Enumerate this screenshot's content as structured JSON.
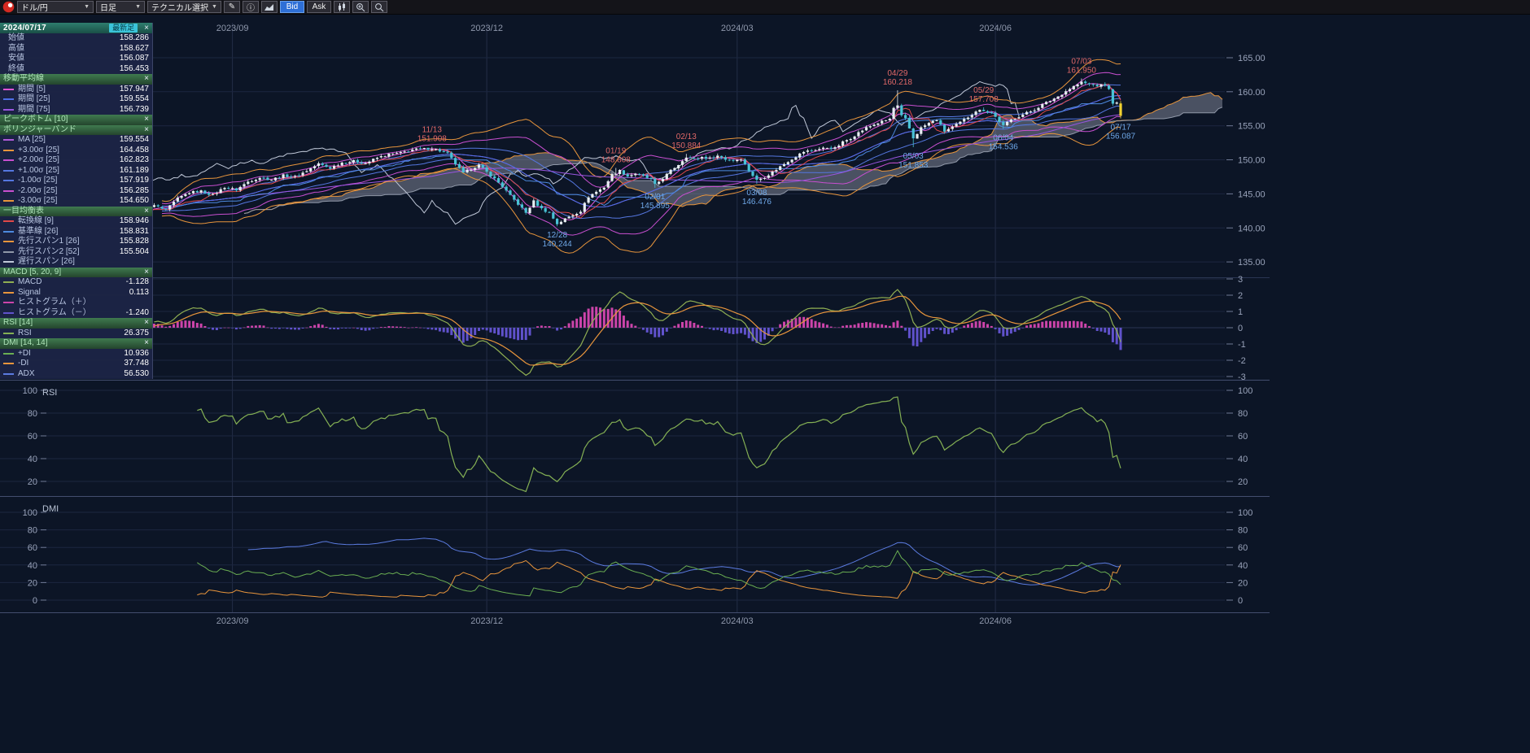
{
  "icons": {
    "chevron_down": "▼",
    "edit": "✎",
    "info": "ⓘ",
    "close": "×"
  },
  "toolbar": {
    "pair": "ドル/円",
    "timeframe": "日足",
    "technical_select": "テクニカル選択",
    "bid": "Bid",
    "ask": "Ask"
  },
  "sidebar": {
    "latest": {
      "date": "2024/07/17",
      "badge": "最新足"
    },
    "ohlc": [
      {
        "label": "始値",
        "value": "158.286"
      },
      {
        "label": "高値",
        "value": "158.627"
      },
      {
        "label": "安値",
        "value": "156.087"
      },
      {
        "label": "終値",
        "value": "156.453"
      }
    ],
    "sections": [
      {
        "title": "移動平均線",
        "rows": [
          {
            "color": "#e055d5",
            "label": "期間 [5]",
            "value": "157.947"
          },
          {
            "color": "#4d6fe8",
            "label": "期間 [25]",
            "value": "159.554"
          },
          {
            "color": "#9a55e0",
            "label": "期間 [75]",
            "value": "156.739"
          }
        ]
      },
      {
        "title": "ピークボトム [10]",
        "rows": []
      },
      {
        "title": "ボリンジャーバンド",
        "rows": [
          {
            "color": "#b05ad8",
            "label": "MA [25]",
            "value": "159.554"
          },
          {
            "color": "#e8953c",
            "label": "+3.00σ [25]",
            "value": "164.458"
          },
          {
            "color": "#c84fd0",
            "label": "+2.00σ [25]",
            "value": "162.823"
          },
          {
            "color": "#5577e0",
            "label": "+1.00σ [25]",
            "value": "161.189"
          },
          {
            "color": "#5577e0",
            "label": "-1.00σ [25]",
            "value": "157.919"
          },
          {
            "color": "#c84fd0",
            "label": "-2.00σ [25]",
            "value": "156.285"
          },
          {
            "color": "#e8953c",
            "label": "-3.00σ [25]",
            "value": "154.650"
          }
        ]
      },
      {
        "title": "一目均衡表",
        "rows": [
          {
            "color": "#e04848",
            "label": "転換線 [9]",
            "value": "158.946"
          },
          {
            "color": "#4d8ae0",
            "label": "基準線 [26]",
            "value": "158.831"
          },
          {
            "color": "#e8953c",
            "label": "先行スパン1 [26]",
            "value": "155.828"
          },
          {
            "color": "#9098a8",
            "label": "先行スパン2 [52]",
            "value": "155.504"
          },
          {
            "color": "#c0c8d8",
            "label": "遅行スパン [26]",
            "value": ""
          }
        ]
      },
      {
        "title": "MACD [5, 20, 9]",
        "rows": [
          {
            "color": "#8fae52",
            "label": "MACD",
            "value": "-1.128"
          },
          {
            "color": "#e8953c",
            "label": "Signal",
            "value": "0.113"
          },
          {
            "color": "#cc44aa",
            "label": "ヒストグラム（＋）",
            "value": ""
          },
          {
            "color": "#6052cc",
            "label": "ヒストグラム（－）",
            "value": "-1.240"
          }
        ]
      },
      {
        "title": "RSI [14]",
        "rows": [
          {
            "color": "#84b054",
            "label": "RSI",
            "value": "26.375"
          }
        ]
      },
      {
        "title": "DMI [14, 14]",
        "rows": [
          {
            "color": "#6aae52",
            "label": "+DI",
            "value": "10.936"
          },
          {
            "color": "#e8953c",
            "label": "-DI",
            "value": "37.748"
          },
          {
            "color": "#5b7be0",
            "label": "ADX",
            "value": "56.530"
          }
        ]
      }
    ]
  },
  "chart_data": {
    "type": "candlestick",
    "title": "ドル/円 日足",
    "panels": [
      "price",
      "MACD",
      "RSI",
      "DMI"
    ],
    "x_gridlines": [
      {
        "label": "2023/09",
        "index": 23
      },
      {
        "label": "2023/12",
        "index": 88
      },
      {
        "label": "2024/03",
        "index": 152
      },
      {
        "label": "2024/06",
        "index": 218
      }
    ],
    "price_axis": {
      "labels": [
        "165.00",
        "160.00",
        "155.00",
        "150.00",
        "145.00",
        "140.00",
        "135.00"
      ],
      "values": [
        165,
        160,
        155,
        150,
        145,
        140,
        135
      ]
    },
    "macd_axis": {
      "labels": [
        "3",
        "2",
        "1",
        "0",
        "-1",
        "-2",
        "-3"
      ],
      "values": [
        3,
        2,
        1,
        0,
        -1,
        -2,
        -3
      ]
    },
    "rsi_axis": {
      "labels": [
        "100",
        "80",
        "60",
        "40",
        "20"
      ],
      "values": [
        100,
        80,
        60,
        40,
        20
      ]
    },
    "dmi_axis": {
      "labels": [
        "100",
        "80",
        "60",
        "40",
        "20",
        "0"
      ],
      "values": [
        100,
        80,
        60,
        40,
        20,
        0
      ]
    },
    "rsi_title": "RSI",
    "dmi_title": "DMI",
    "indicator_params": {
      "sma": [
        5,
        25,
        75
      ],
      "bollinger": {
        "period": 25,
        "sigmas": [
          1,
          2,
          3
        ]
      },
      "ichimoku": {
        "tenkan": 9,
        "kijun": 26,
        "senkou2": 52,
        "shift": 26
      },
      "macd": [
        5,
        20,
        9
      ],
      "rsi": 14,
      "dmi": [
        14,
        14
      ]
    },
    "last_candle": {
      "open": 158.286,
      "high": 158.627,
      "low": 156.087,
      "close": 156.453
    },
    "annotations": [
      {
        "index": 74,
        "date": "11/13",
        "value": "151.908",
        "kind": "peak"
      },
      {
        "index": 106,
        "date": "12/28",
        "value": "140.244",
        "kind": "bottom"
      },
      {
        "index": 121,
        "date": "01/19",
        "value": "148.808",
        "kind": "peak"
      },
      {
        "index": 131,
        "date": "02/01",
        "value": "145.895",
        "kind": "bottom"
      },
      {
        "index": 139,
        "date": "02/13",
        "value": "150.884",
        "kind": "peak"
      },
      {
        "index": 157,
        "date": "03/08",
        "value": "146.476",
        "kind": "bottom"
      },
      {
        "index": 193,
        "date": "04/29",
        "value": "160.218",
        "kind": "peak"
      },
      {
        "index": 197,
        "date": "05/03",
        "value": "151.853",
        "kind": "bottom"
      },
      {
        "index": 215,
        "date": "05/29",
        "value": "157.708",
        "kind": "peak"
      },
      {
        "index": 220,
        "date": "06/04",
        "value": "154.536",
        "kind": "bottom"
      },
      {
        "index": 240,
        "date": "07/03",
        "value": "161.950",
        "kind": "peak"
      },
      {
        "index": 250,
        "date": "07/17",
        "value": "156.087",
        "kind": "bottom"
      }
    ],
    "close_anchors": [
      [
        0,
        142.2
      ],
      [
        3,
        143.3
      ],
      [
        6,
        142.6
      ],
      [
        9,
        144.3
      ],
      [
        12,
        145.2
      ],
      [
        15,
        145.4
      ],
      [
        18,
        144.8
      ],
      [
        21,
        146.0
      ],
      [
        24,
        145.6
      ],
      [
        27,
        146.8
      ],
      [
        30,
        147.4
      ],
      [
        33,
        147.1
      ],
      [
        36,
        147.7
      ],
      [
        39,
        147.5
      ],
      [
        42,
        148.4
      ],
      [
        45,
        149.4
      ],
      [
        48,
        148.8
      ],
      [
        51,
        149.6
      ],
      [
        54,
        149.8
      ],
      [
        57,
        149.5
      ],
      [
        60,
        150.3
      ],
      [
        63,
        150.8
      ],
      [
        66,
        151.0
      ],
      [
        69,
        151.5
      ],
      [
        72,
        151.6
      ],
      [
        74,
        151.7
      ],
      [
        76,
        151.3
      ],
      [
        78,
        150.9
      ],
      [
        80,
        149.4
      ],
      [
        82,
        148.0
      ],
      [
        84,
        148.7
      ],
      [
        86,
        149.2
      ],
      [
        88,
        148.2
      ],
      [
        90,
        147.2
      ],
      [
        92,
        146.1
      ],
      [
        94,
        144.7
      ],
      [
        96,
        143.5
      ],
      [
        98,
        142.2
      ],
      [
        100,
        143.9
      ],
      [
        102,
        142.8
      ],
      [
        104,
        142.2
      ],
      [
        106,
        140.6
      ],
      [
        108,
        141.3
      ],
      [
        110,
        141.9
      ],
      [
        112,
        142.5
      ],
      [
        114,
        144.6
      ],
      [
        116,
        145.3
      ],
      [
        118,
        146.0
      ],
      [
        120,
        147.8
      ],
      [
        122,
        148.4
      ],
      [
        124,
        147.6
      ],
      [
        126,
        148.0
      ],
      [
        128,
        147.6
      ],
      [
        130,
        147.1
      ],
      [
        131,
        146.3
      ],
      [
        133,
        147.3
      ],
      [
        135,
        148.4
      ],
      [
        137,
        149.3
      ],
      [
        139,
        150.5
      ],
      [
        141,
        150.1
      ],
      [
        143,
        150.4
      ],
      [
        145,
        150.2
      ],
      [
        147,
        150.6
      ],
      [
        149,
        150.1
      ],
      [
        151,
        149.9
      ],
      [
        153,
        150.2
      ],
      [
        155,
        148.4
      ],
      [
        157,
        147.0
      ],
      [
        159,
        147.5
      ],
      [
        161,
        148.2
      ],
      [
        163,
        149.0
      ],
      [
        165,
        149.8
      ],
      [
        167,
        150.5
      ],
      [
        169,
        151.2
      ],
      [
        171,
        151.4
      ],
      [
        173,
        151.6
      ],
      [
        175,
        151.8
      ],
      [
        177,
        151.7
      ],
      [
        179,
        152.6
      ],
      [
        181,
        153.2
      ],
      [
        183,
        154.0
      ],
      [
        185,
        154.7
      ],
      [
        187,
        155.2
      ],
      [
        189,
        155.6
      ],
      [
        191,
        156.0
      ],
      [
        192,
        157.6
      ],
      [
        193,
        157.9
      ],
      [
        194,
        156.4
      ],
      [
        195,
        156.0
      ],
      [
        196,
        154.6
      ],
      [
        197,
        153.2
      ],
      [
        198,
        153.9
      ],
      [
        199,
        154.7
      ],
      [
        201,
        155.4
      ],
      [
        203,
        155.9
      ],
      [
        205,
        154.2
      ],
      [
        207,
        154.8
      ],
      [
        209,
        155.5
      ],
      [
        211,
        156.3
      ],
      [
        213,
        157.2
      ],
      [
        215,
        157.3
      ],
      [
        217,
        156.9
      ],
      [
        218,
        156.3
      ],
      [
        220,
        155.0
      ],
      [
        222,
        155.9
      ],
      [
        224,
        156.4
      ],
      [
        226,
        156.9
      ],
      [
        228,
        157.4
      ],
      [
        230,
        158.1
      ],
      [
        232,
        158.7
      ],
      [
        234,
        159.3
      ],
      [
        236,
        160.1
      ],
      [
        238,
        160.8
      ],
      [
        240,
        161.4
      ],
      [
        242,
        161.1
      ],
      [
        244,
        160.9
      ],
      [
        246,
        161.0
      ],
      [
        247,
        160.3
      ],
      [
        248,
        158.4
      ],
      [
        249,
        158.3
      ],
      [
        250,
        156.5
      ]
    ],
    "colors": {
      "candle_up": "#e8eef2",
      "candle_down": "#49c2d6",
      "latest": "#f2d230",
      "ma5": "#e055d5",
      "ma25": "#4d6fe8",
      "ma75": "#9a55e0",
      "boll_ma": "#b05ad8",
      "boll1": "#5577e0",
      "boll2": "#c84fd0",
      "boll3": "#e8953c",
      "tenkan": "#e04848",
      "kijun": "#4d8ae0",
      "senkou1": "#e8953c",
      "senkou2": "#9098a8",
      "chikou": "#c0c8d8",
      "cloud": "rgba(150,156,172,0.45)",
      "macd": "#8fae52",
      "signal": "#e8953c",
      "hist_pos": "#cc44aa",
      "hist_neg": "#6052cc",
      "rsi": "#84b054",
      "pdi": "#6aae52",
      "mdi": "#e8953c",
      "adx": "#5b7be0",
      "peak_label": "#e06868",
      "bottom_label": "#6fa8e8",
      "axis_text": "#99a3ba",
      "date_text": "#8f98ac",
      "grid": "#1c2640",
      "grid_strong": "#2a3552",
      "vgrid": "#232d46",
      "divider": "#434e6e",
      "tick": "#707a96",
      "panel_title": "#b8c2d4"
    }
  }
}
